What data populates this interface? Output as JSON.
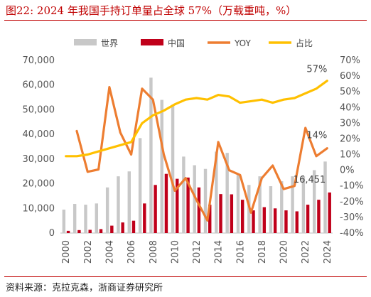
{
  "title": "图22:  2024 年我国手持订单量占全球 57%（万载重吨，%）",
  "source": "资料来源：克拉克森，浙商证券研究所",
  "chart_data": {
    "type": "bar",
    "categories": [
      "2000",
      "2001",
      "2002",
      "2003",
      "2004",
      "2005",
      "2006",
      "2007",
      "2008",
      "2009",
      "2010",
      "2011",
      "2012",
      "2013",
      "2014",
      "2015",
      "2016",
      "2017",
      "2018",
      "2019",
      "2020",
      "2021",
      "2022",
      "2023",
      "2024"
    ],
    "x_tick_labels": [
      "2000",
      "2002",
      "2004",
      "2006",
      "2008",
      "2010",
      "2012",
      "2014",
      "2016",
      "2018",
      "2020",
      "2022",
      "2024"
    ],
    "series": [
      {
        "name": "世界",
        "axis": "left",
        "kind": "bar",
        "color": "#c8c8c8",
        "values": [
          9500,
          11800,
          11500,
          12000,
          18500,
          23000,
          25000,
          38500,
          63000,
          54000,
          52000,
          31000,
          27500,
          26000,
          33000,
          32500,
          23500,
          19500,
          23000,
          19000,
          21000,
          23000,
          23000,
          25500,
          29000
        ]
      },
      {
        "name": "中国",
        "axis": "left",
        "kind": "bar",
        "color": "#c0001a",
        "values": [
          900,
          1200,
          1300,
          1600,
          3000,
          4300,
          5000,
          12000,
          19500,
          24000,
          22000,
          22500,
          18500,
          11500,
          15800,
          15700,
          13500,
          9200,
          10500,
          10000,
          9200,
          8800,
          11500,
          13500,
          16451
        ]
      },
      {
        "name": "YOY",
        "axis": "right",
        "kind": "line",
        "color": "#ed7d31",
        "values": [
          null,
          25,
          -1,
          0.5,
          53,
          24,
          10,
          52,
          45,
          10,
          -13,
          -5,
          -19,
          -32,
          18,
          0,
          -3,
          -27,
          -5,
          3,
          -12,
          -10,
          27,
          9,
          14
        ]
      },
      {
        "name": "占比",
        "axis": "right",
        "kind": "line",
        "color": "#ffc000",
        "values": [
          9,
          9,
          10,
          12,
          14,
          16,
          18,
          30,
          35,
          38,
          42,
          45,
          46,
          45,
          48,
          47,
          43,
          44,
          45,
          43,
          45,
          46,
          49,
          52,
          57
        ]
      }
    ],
    "left_axis": {
      "min": 0,
      "max": 70000,
      "ticks": [
        "0",
        "10,000",
        "20,000",
        "30,000",
        "40,000",
        "50,000",
        "60,000",
        "70,000"
      ]
    },
    "right_axis": {
      "min": -40,
      "max": 70,
      "ticks": [
        "-40%",
        "-30%",
        "-20%",
        "-10%",
        "0%",
        "10%",
        "20%",
        "30%",
        "40%",
        "50%",
        "60%",
        "70%"
      ]
    },
    "annotations": [
      {
        "text": "57%",
        "series": "占比",
        "category": "2024"
      },
      {
        "text": "14%",
        "series": "YOY",
        "category": "2024"
      },
      {
        "text": "16,451",
        "series": "中国",
        "category": "2024"
      }
    ],
    "legend_position": "top",
    "grid": false
  }
}
